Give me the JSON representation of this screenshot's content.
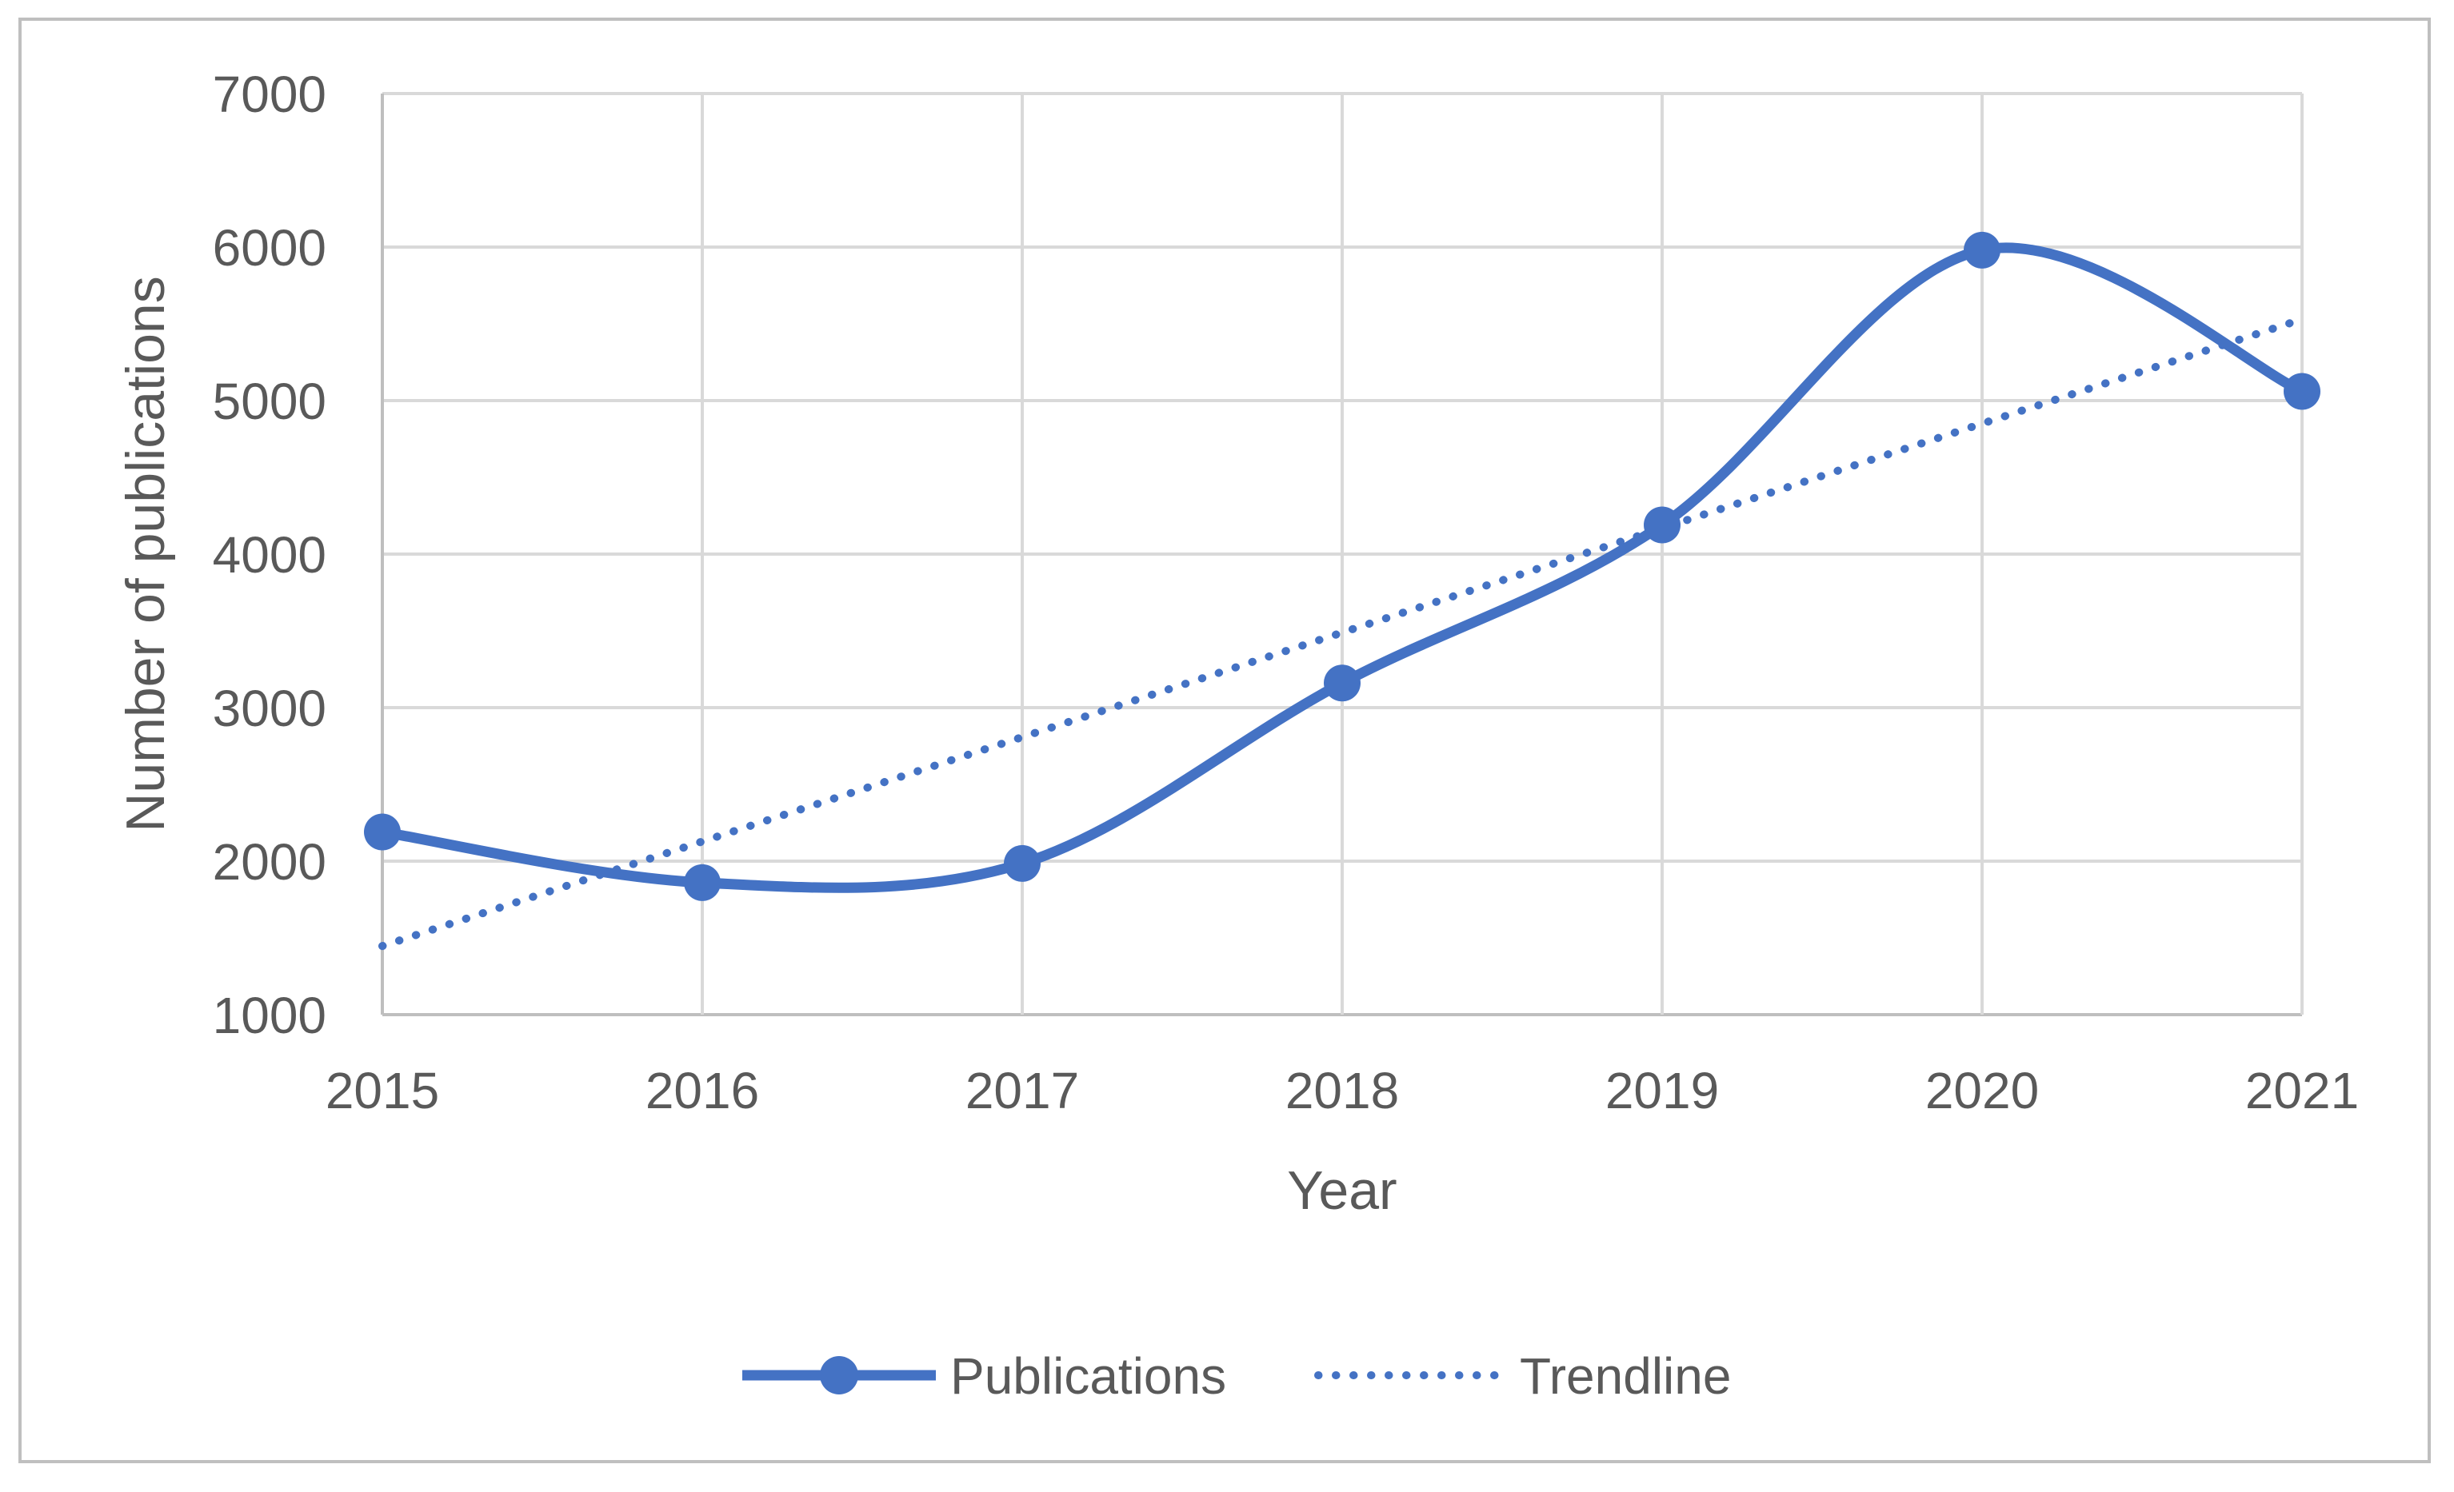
{
  "figure": {
    "background": "#FFFFFF",
    "border_color": "#BFBFBF"
  },
  "chart_data": {
    "type": "line",
    "title": "",
    "xlabel": "Year",
    "ylabel": "Number of publications",
    "x": [
      2015,
      2016,
      2017,
      2018,
      2019,
      2020,
      2021
    ],
    "series": [
      {
        "name": "Publications",
        "values": [
          2190,
          1860,
          1985,
          3160,
          4190,
          5980,
          5060
        ],
        "style": "solid-smooth",
        "markers": true
      },
      {
        "name": "Trendline",
        "values": [
          1447,
          2128,
          2808,
          3489,
          4169,
          4850,
          5530
        ],
        "style": "dotted",
        "markers": false
      }
    ],
    "ylim": [
      1000,
      7000
    ],
    "yticks": [
      1000,
      2000,
      3000,
      4000,
      5000,
      6000,
      7000
    ],
    "xticks": [
      "2015",
      "2016",
      "2017",
      "2018",
      "2019",
      "2020",
      "2021"
    ],
    "grid": "both",
    "legend_position": "bottom",
    "colors": {
      "series": "#4472C4",
      "grid": "#D9D9D9",
      "axis": "#BFBFBF",
      "text": "#595959"
    }
  },
  "legend": {
    "items": [
      {
        "label": "Publications",
        "sample": "solid-line-with-marker"
      },
      {
        "label": "Trendline",
        "sample": "dotted-line"
      }
    ]
  }
}
